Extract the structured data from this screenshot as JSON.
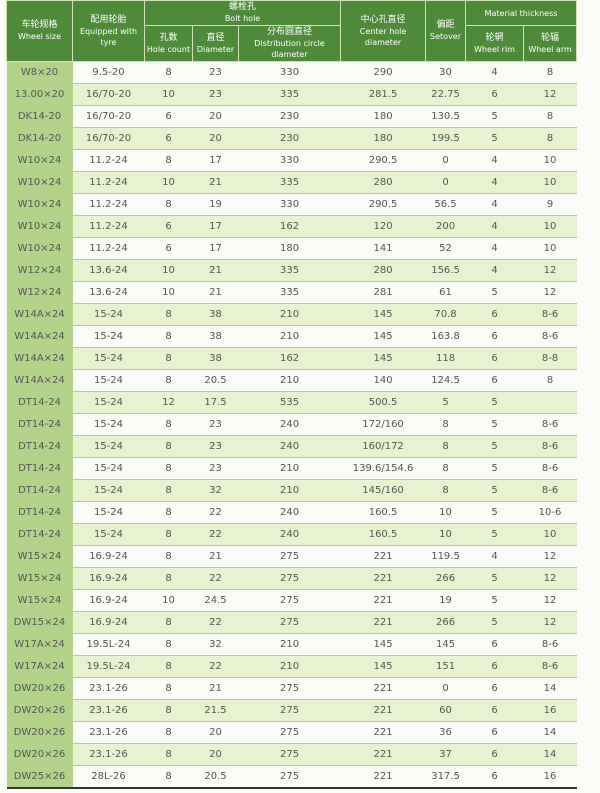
{
  "header": {
    "wheel_size": {
      "zh": "车轮规格",
      "en": "Wheel size"
    },
    "tyre": {
      "zh": "配用轮胎",
      "en": "Equipped with tyre"
    },
    "bolt_hole": {
      "zh": "螺栓孔",
      "en": "Bolt hole"
    },
    "hole_count": {
      "zh": "孔数",
      "en": "Hole count"
    },
    "diameter": {
      "zh": "直径",
      "en": "Diameter"
    },
    "distribution": {
      "zh": "分布圆直径",
      "en": "Distribution circle diameter"
    },
    "center_hole": {
      "zh": "中心孔直径",
      "en": "Center hole diameter"
    },
    "setover": {
      "zh": "偏距",
      "en": "Setover"
    },
    "material": {
      "en": "Material thickness"
    },
    "wheel_rim": {
      "zh": "轮辋",
      "en": "Wheel rim"
    },
    "wheel_arm": {
      "zh": "轮辐",
      "en": "Wheel arm"
    }
  },
  "rows": [
    [
      "W8×20",
      "9.5-20",
      "8",
      "23",
      "330",
      "290",
      "30",
      "4",
      "8"
    ],
    [
      "13.00×20",
      "16/70-20",
      "10",
      "23",
      "335",
      "281.5",
      "22.75",
      "6",
      "12"
    ],
    [
      "DK14-20",
      "16/70-20",
      "6",
      "20",
      "230",
      "180",
      "130.5",
      "5",
      "8"
    ],
    [
      "DK14-20",
      "16/70-20",
      "6",
      "20",
      "230",
      "180",
      "199.5",
      "5",
      "8"
    ],
    [
      "W10×24",
      "11.2-24",
      "8",
      "17",
      "330",
      "290.5",
      "0",
      "4",
      "10"
    ],
    [
      "W10×24",
      "11.2-24",
      "10",
      "21",
      "335",
      "280",
      "0",
      "4",
      "10"
    ],
    [
      "W10×24",
      "11.2-24",
      "8",
      "19",
      "330",
      "290.5",
      "56.5",
      "4",
      "9"
    ],
    [
      "W10×24",
      "11.2-24",
      "6",
      "17",
      "162",
      "120",
      "200",
      "4",
      "10"
    ],
    [
      "W10×24",
      "11.2-24",
      "6",
      "17",
      "180",
      "141",
      "52",
      "4",
      "10"
    ],
    [
      "W12×24",
      "13.6-24",
      "10",
      "21",
      "335",
      "280",
      "156.5",
      "4",
      "12"
    ],
    [
      "W12×24",
      "13.6-24",
      "10",
      "21",
      "335",
      "281",
      "61",
      "5",
      "12"
    ],
    [
      "W14A×24",
      "15-24",
      "8",
      "38",
      "210",
      "145",
      "70.8",
      "6",
      "8-6"
    ],
    [
      "W14A×24",
      "15-24",
      "8",
      "38",
      "210",
      "145",
      "163.8",
      "6",
      "8-6"
    ],
    [
      "W14A×24",
      "15-24",
      "8",
      "38",
      "162",
      "145",
      "118",
      "6",
      "8-8"
    ],
    [
      "W14A×24",
      "15-24",
      "8",
      "20.5",
      "210",
      "140",
      "124.5",
      "6",
      "8"
    ],
    [
      "DT14-24",
      "15-24",
      "12",
      "17.5",
      "535",
      "500.5",
      "5",
      "5",
      ""
    ],
    [
      "DT14-24",
      "15-24",
      "8",
      "23",
      "240",
      "172/160",
      "8",
      "5",
      "8-6"
    ],
    [
      "DT14-24",
      "15-24",
      "8",
      "23",
      "240",
      "160/172",
      "8",
      "5",
      "8-6"
    ],
    [
      "DT14-24",
      "15-24",
      "8",
      "23",
      "210",
      "139.6/154.6",
      "8",
      "5",
      "8-6"
    ],
    [
      "DT14-24",
      "15-24",
      "8",
      "32",
      "210",
      "145/160",
      "8",
      "5",
      "8-6"
    ],
    [
      "DT14-24",
      "15-24",
      "8",
      "22",
      "240",
      "160.5",
      "10",
      "5",
      "10-6"
    ],
    [
      "DT14-24",
      "15-24",
      "8",
      "22",
      "240",
      "160.5",
      "10",
      "5",
      "10"
    ],
    [
      "W15×24",
      "16.9-24",
      "8",
      "21",
      "275",
      "221",
      "119.5",
      "4",
      "12"
    ],
    [
      "W15×24",
      "16.9-24",
      "8",
      "22",
      "275",
      "221",
      "266",
      "5",
      "12"
    ],
    [
      "W15×24",
      "16.9-24",
      "10",
      "24.5",
      "275",
      "221",
      "19",
      "5",
      "12"
    ],
    [
      "DW15×24",
      "16.9-24",
      "8",
      "22",
      "275",
      "221",
      "266",
      "5",
      "12"
    ],
    [
      "W17A×24",
      "19.5L-24",
      "8",
      "32",
      "210",
      "145",
      "145",
      "6",
      "8-6"
    ],
    [
      "W17A×24",
      "19.5L-24",
      "8",
      "22",
      "210",
      "145",
      "151",
      "6",
      "8-6"
    ],
    [
      "DW20×26",
      "23.1-26",
      "8",
      "21",
      "275",
      "221",
      "0",
      "6",
      "14"
    ],
    [
      "DW20×26",
      "23.1-26",
      "8",
      "21.5",
      "275",
      "221",
      "60",
      "6",
      "16"
    ],
    [
      "DW20×26",
      "23.1-26",
      "8",
      "20",
      "275",
      "221",
      "36",
      "6",
      "14"
    ],
    [
      "DW20×26",
      "23.1-26",
      "8",
      "20",
      "275",
      "221",
      "37",
      "6",
      "14"
    ],
    [
      "DW25×26",
      "28L-26",
      "8",
      "20.5",
      "275",
      "221",
      "317.5",
      "6",
      "16"
    ]
  ]
}
